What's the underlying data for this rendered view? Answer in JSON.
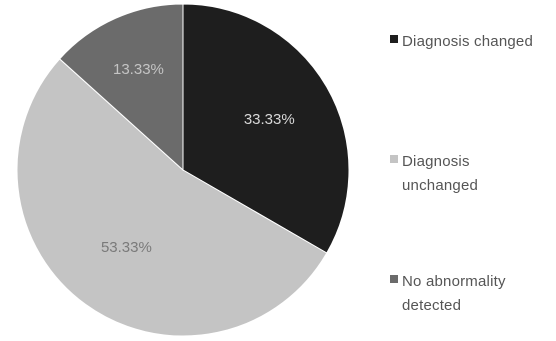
{
  "chart_data": {
    "type": "pie",
    "title": "",
    "slices": [
      {
        "label": "Diagnosis changed",
        "value": 33.33,
        "data_label": "33.33%",
        "color": "#1e1e1e",
        "label_color": "#d8d8d8"
      },
      {
        "label": "Diagnosis unchanged",
        "value": 53.33,
        "data_label": "53.33%",
        "color": "#c4c4c4",
        "label_color": "#7a7a7a"
      },
      {
        "label": "No abnormality detected",
        "value": 13.33,
        "data_label": "13.33%",
        "color": "#6b6b6b",
        "label_color": "#c4c4c4"
      }
    ],
    "start_angle_deg": 0,
    "direction": "clockwise",
    "legend_position": "right"
  }
}
